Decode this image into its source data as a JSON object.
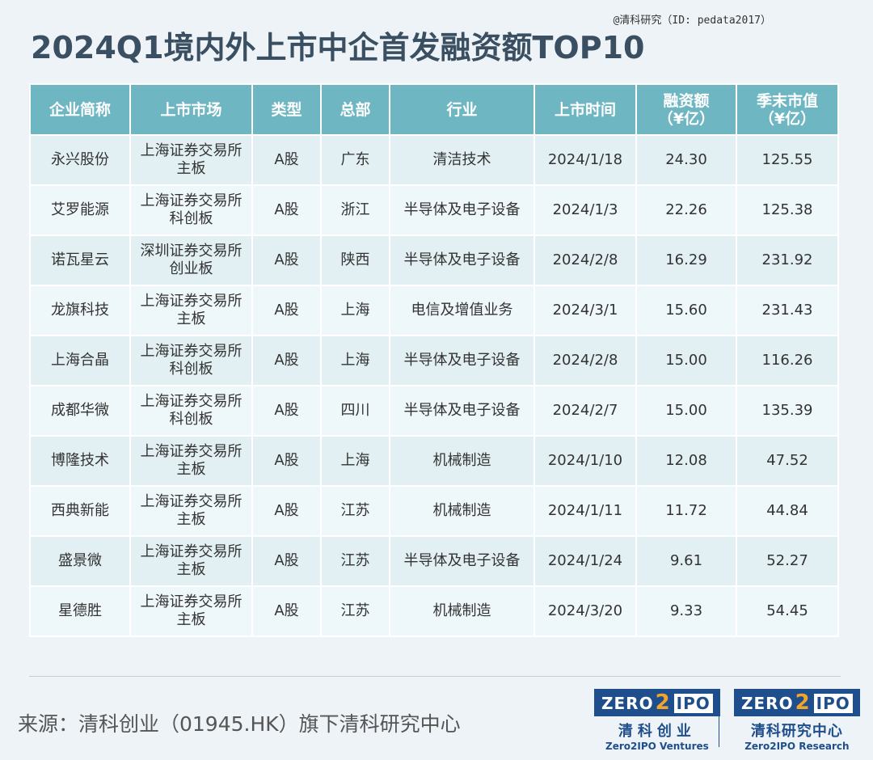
{
  "watermark": "@清科研究（ID: pedata2017）",
  "title": "2024Q1境内外上市中企首发融资额TOP10",
  "columns": [
    "企业简称",
    "上市市场",
    "类型",
    "总部",
    "行业",
    "上市时间",
    [
      "融资额",
      "（¥亿）"
    ],
    [
      "季末市值",
      "（¥亿）"
    ]
  ],
  "rows": [
    {
      "name": "永兴股份",
      "market": [
        "上海证券交易所",
        "主板"
      ],
      "type": "A股",
      "hq": "广东",
      "industry": "清洁技术",
      "date": "2024/1/18",
      "amount": "24.30",
      "cap": "125.55"
    },
    {
      "name": "艾罗能源",
      "market": [
        "上海证券交易所",
        "科创板"
      ],
      "type": "A股",
      "hq": "浙江",
      "industry": "半导体及电子设备",
      "date": "2024/1/3",
      "amount": "22.26",
      "cap": "125.38"
    },
    {
      "name": "诺瓦星云",
      "market": [
        "深圳证券交易所",
        "创业板"
      ],
      "type": "A股",
      "hq": "陕西",
      "industry": "半导体及电子设备",
      "date": "2024/2/8",
      "amount": "16.29",
      "cap": "231.92"
    },
    {
      "name": "龙旗科技",
      "market": [
        "上海证券交易所",
        "主板"
      ],
      "type": "A股",
      "hq": "上海",
      "industry": "电信及增值业务",
      "date": "2024/3/1",
      "amount": "15.60",
      "cap": "231.43"
    },
    {
      "name": "上海合晶",
      "market": [
        "上海证券交易所",
        "科创板"
      ],
      "type": "A股",
      "hq": "上海",
      "industry": "半导体及电子设备",
      "date": "2024/2/8",
      "amount": "15.00",
      "cap": "116.26"
    },
    {
      "name": "成都华微",
      "market": [
        "上海证券交易所",
        "科创板"
      ],
      "type": "A股",
      "hq": "四川",
      "industry": "半导体及电子设备",
      "date": "2024/2/7",
      "amount": "15.00",
      "cap": "135.39"
    },
    {
      "name": "博隆技术",
      "market": [
        "上海证券交易所",
        "主板"
      ],
      "type": "A股",
      "hq": "上海",
      "industry": "机械制造",
      "date": "2024/1/10",
      "amount": "12.08",
      "cap": "47.52"
    },
    {
      "name": "西典新能",
      "market": [
        "上海证券交易所",
        "主板"
      ],
      "type": "A股",
      "hq": "江苏",
      "industry": "机械制造",
      "date": "2024/1/11",
      "amount": "11.72",
      "cap": "44.84"
    },
    {
      "name": "盛景微",
      "market": [
        "上海证券交易所",
        "主板"
      ],
      "type": "A股",
      "hq": "江苏",
      "industry": "半导体及电子设备",
      "date": "2024/1/24",
      "amount": "9.61",
      "cap": "52.27"
    },
    {
      "name": "星德胜",
      "market": [
        "上海证券交易所",
        "主板"
      ],
      "type": "A股",
      "hq": "江苏",
      "industry": "机械制造",
      "date": "2024/3/20",
      "amount": "9.33",
      "cap": "54.45"
    }
  ],
  "source": "来源：清科创业（01945.HK）旗下清科研究中心",
  "logo_left": {
    "badge_head": "ZERO",
    "badge_two": "2",
    "badge_tail": "IPO",
    "cn": "清科创业",
    "en": "Zero2IPO Ventures"
  },
  "logo_right": {
    "badge_head": "ZERO",
    "badge_two": "2",
    "badge_tail": "IPO",
    "cn": "清科研究中心",
    "en": "Zero2IPO Research"
  }
}
